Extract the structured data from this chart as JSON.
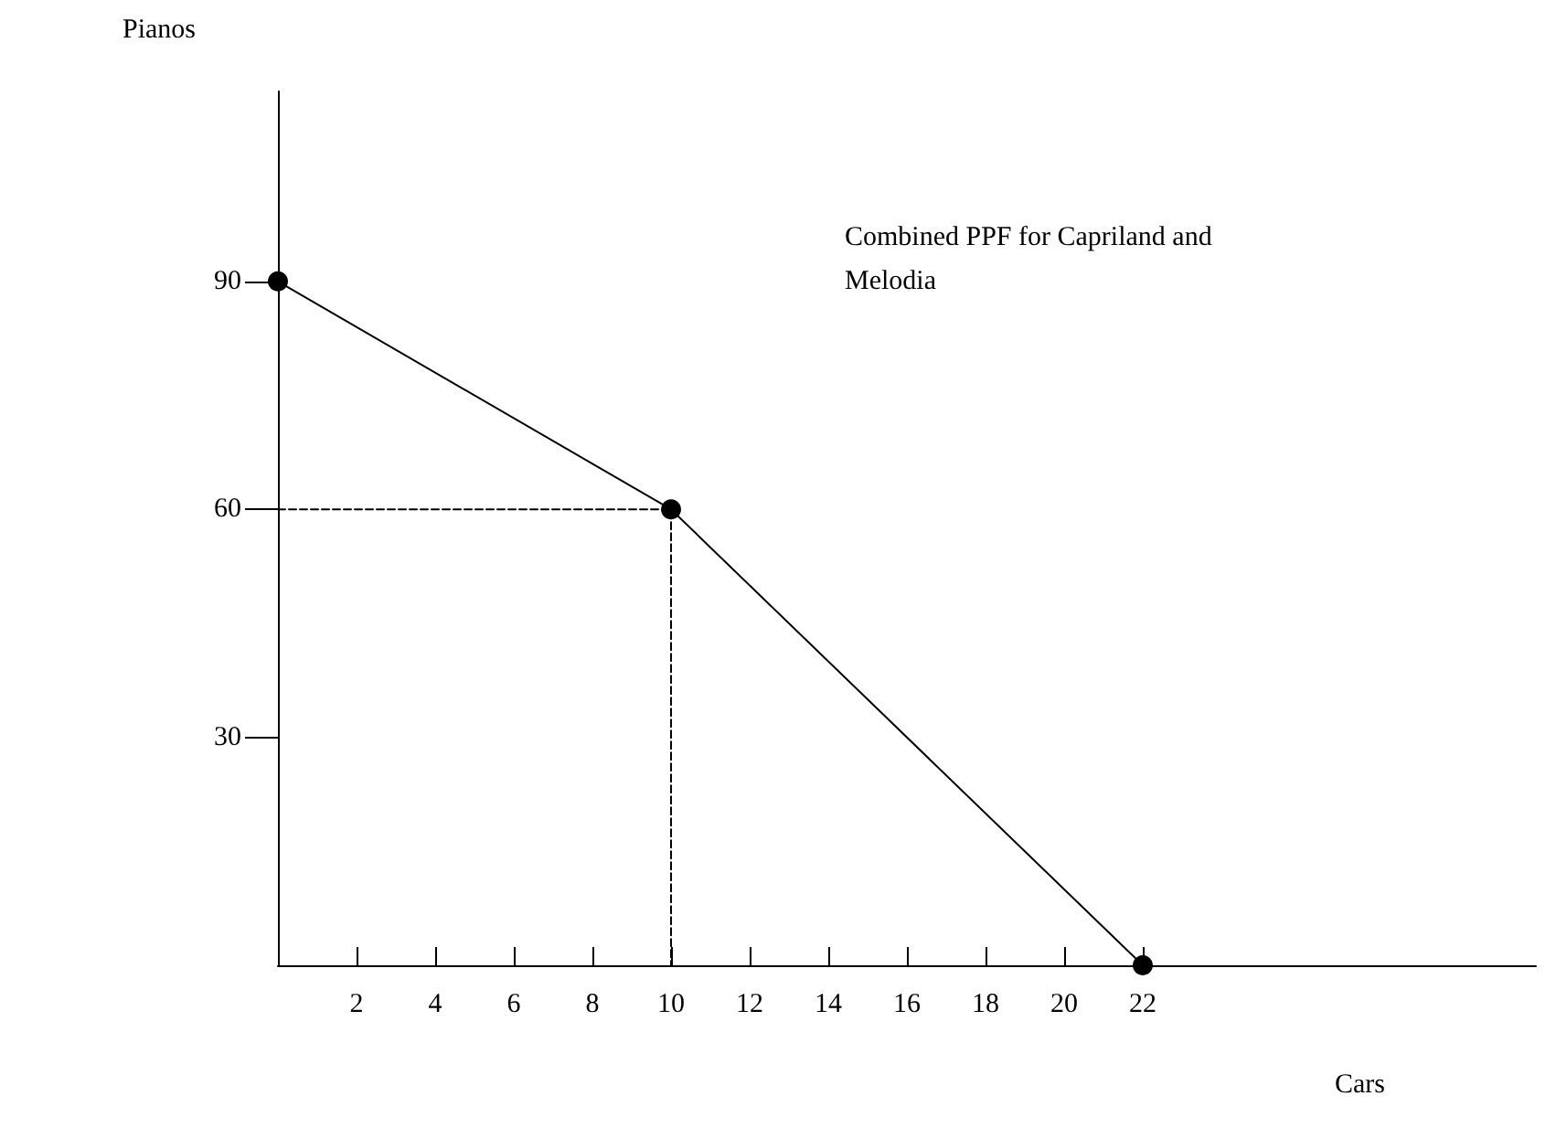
{
  "chart_data": {
    "type": "line",
    "xlabel": "Cars",
    "ylabel": "Pianos",
    "annotations": [
      "Combined PPF for Capriland and Melodia"
    ],
    "series": [
      {
        "color": "#000000",
        "x": [
          0,
          10,
          22
        ],
        "values": [
          90,
          60,
          0
        ],
        "marker": "circle",
        "line_style": "solid"
      },
      {
        "color": "#000000",
        "x": [
          0,
          10,
          10
        ],
        "values": [
          60,
          60,
          0
        ],
        "marker": "none",
        "line_style": "dashed"
      }
    ],
    "xlim": [
      0,
      32
    ],
    "xticks": [
      2,
      4,
      6,
      8,
      10,
      12,
      14,
      16,
      18,
      20,
      22
    ],
    "ylim": [
      0,
      115
    ],
    "yticks": [
      30,
      60,
      90
    ]
  }
}
